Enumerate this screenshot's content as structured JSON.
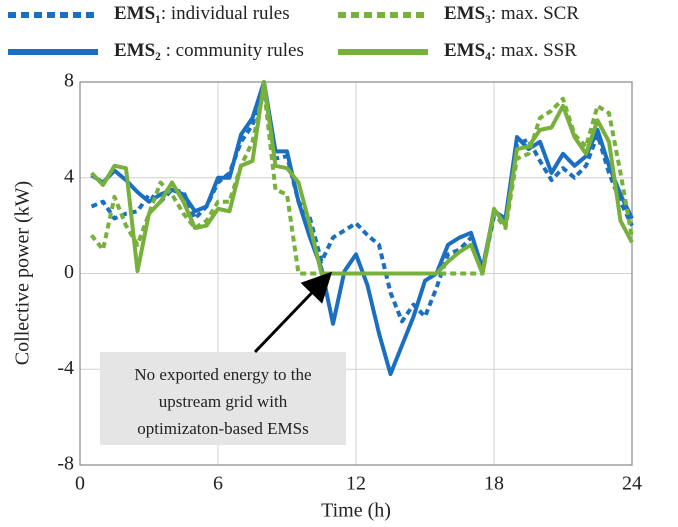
{
  "chart_data": {
    "type": "line",
    "x_label": "Time (h)",
    "y_label": "Collective power (kW)",
    "xlim": [
      0,
      24
    ],
    "xticks": [
      0,
      6,
      12,
      18,
      24
    ],
    "ylim": [
      -8,
      8
    ],
    "yticks": [
      -8,
      -4,
      0,
      4,
      8
    ],
    "grid": true,
    "legend": "top",
    "x": [
      0.5,
      1,
      1.5,
      2,
      2.5,
      3,
      3.5,
      4,
      4.5,
      5,
      5.5,
      6,
      6.5,
      7,
      7.5,
      8,
      8.5,
      9,
      9.5,
      10,
      10.5,
      11,
      11.5,
      12,
      12.5,
      13,
      13.5,
      14,
      14.5,
      15,
      15.5,
      16,
      16.5,
      17,
      17.5,
      18,
      18.5,
      19,
      19.5,
      20,
      20.5,
      21,
      21.5,
      22,
      22.5,
      23,
      23.5,
      24
    ],
    "series": [
      {
        "name": "EMS₁: individual rules",
        "color": "#1b6fc0",
        "style": "dotted",
        "values": [
          2.8,
          3.0,
          2.3,
          2.5,
          2.6,
          3.3,
          3.0,
          3.5,
          3.4,
          2.3,
          2.8,
          3.8,
          4.2,
          5.5,
          6.2,
          7.8,
          4.8,
          4.9,
          3.0,
          2.3,
          0.5,
          1.5,
          1.8,
          2.1,
          1.6,
          1.2,
          -0.8,
          -2.0,
          -1.3,
          -1.8,
          -0.6,
          0.8,
          1.0,
          1.5,
          0.1,
          2.4,
          2.2,
          5.4,
          5.6,
          4.7,
          3.9,
          4.4,
          4.0,
          4.5,
          5.8,
          4.2,
          3.0,
          2.0
        ]
      },
      {
        "name": "EMS₂ : community rules",
        "color": "#1b6fc0",
        "style": "solid",
        "values": [
          4.1,
          3.8,
          4.3,
          3.9,
          3.4,
          3.0,
          3.3,
          3.5,
          3.3,
          2.6,
          2.8,
          4.0,
          4.0,
          5.8,
          6.5,
          8.0,
          5.1,
          5.1,
          3.0,
          1.5,
          0.2,
          -2.1,
          0.1,
          0.8,
          -0.5,
          -2.5,
          -4.2,
          -3.0,
          -1.8,
          -0.3,
          0,
          1.2,
          1.5,
          1.7,
          0.2,
          2.6,
          2.3,
          5.7,
          5.2,
          5.5,
          4.2,
          5.0,
          4.5,
          4.9,
          6.0,
          4.5,
          3.3,
          2.3
        ]
      },
      {
        "name": "EMS₃: max. SCR",
        "color": "#77b03b",
        "style": "dotted",
        "values": [
          1.6,
          1.0,
          3.2,
          2.0,
          1.2,
          2.5,
          3.8,
          3.3,
          2.5,
          1.9,
          2.2,
          3.0,
          3.0,
          4.5,
          5.5,
          7.7,
          3.5,
          3.3,
          0,
          0,
          0,
          0,
          0,
          0,
          0,
          0,
          0,
          0,
          0,
          0,
          0,
          0,
          0,
          0,
          0,
          2.5,
          1.9,
          4.8,
          5.0,
          6.5,
          6.8,
          7.3,
          5.8,
          5.3,
          7.0,
          6.7,
          4.2,
          1.5
        ]
      },
      {
        "name": "EMS₄: max. SSR",
        "color": "#77b03b",
        "style": "solid",
        "values": [
          4.2,
          3.7,
          4.5,
          4.4,
          0.1,
          2.5,
          3.0,
          3.8,
          3.0,
          1.9,
          2.0,
          2.7,
          2.6,
          4.5,
          4.7,
          8.0,
          4.5,
          4.4,
          3.8,
          2.0,
          0,
          0,
          0,
          0,
          0,
          0,
          0,
          0,
          0,
          0,
          0,
          0.5,
          0.9,
          1.2,
          0,
          2.7,
          2.0,
          5.2,
          5.3,
          6.0,
          6.1,
          7.0,
          5.7,
          5.0,
          6.4,
          5.5,
          2.2,
          1.3
        ]
      }
    ],
    "annotation": [
      "No exported energy to the",
      "upstream grid with",
      "optimizaton-based EMSs"
    ]
  }
}
